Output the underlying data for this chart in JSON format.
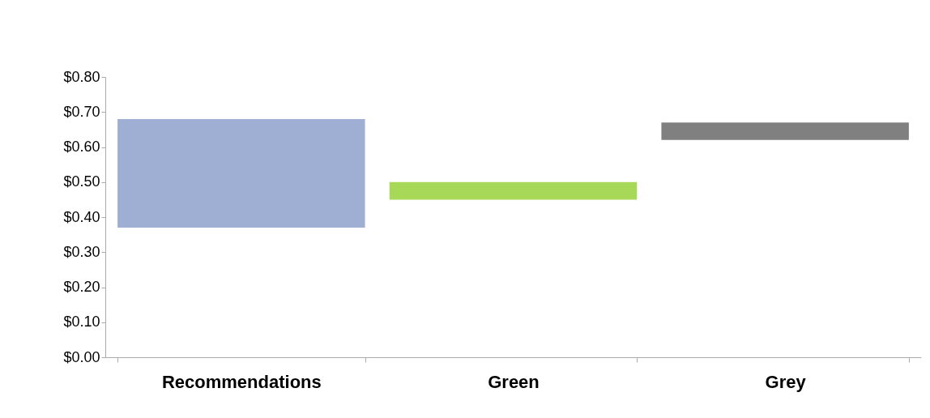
{
  "chart_data": {
    "type": "bar",
    "categories": [
      "Recommendations",
      "Green",
      "Grey"
    ],
    "base": [
      0.37,
      0.45,
      0.62
    ],
    "values": [
      0.31,
      0.05,
      0.05
    ],
    "colors": [
      "#9fafd4",
      "#a8d858",
      "#808080"
    ],
    "ylim": [
      0,
      0.8
    ],
    "yticks": [
      {
        "value": 0,
        "label": "$0.00"
      },
      {
        "value": 0.1,
        "label": "$0.10"
      },
      {
        "value": 0.2,
        "label": "$0.20"
      },
      {
        "value": 0.3,
        "label": "$0.30"
      },
      {
        "value": 0.4,
        "label": "$0.40"
      },
      {
        "value": 0.5,
        "label": "$0.50"
      },
      {
        "value": 0.6,
        "label": "$0.60"
      },
      {
        "value": 0.7,
        "label": "$0.70"
      },
      {
        "value": 0.8,
        "label": "$0.80"
      }
    ],
    "grid": false
  }
}
